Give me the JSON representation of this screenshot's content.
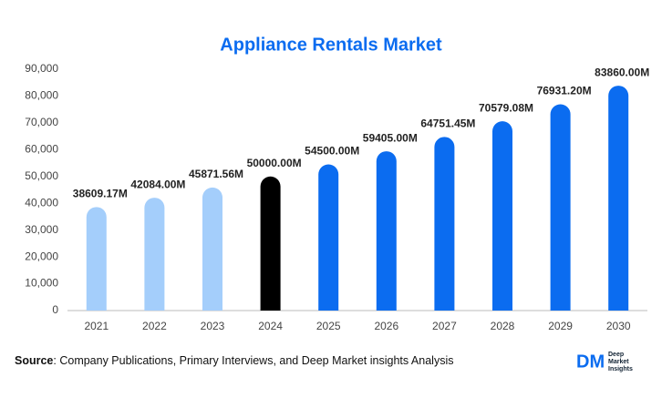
{
  "chart_data": {
    "type": "bar",
    "title": "Appliance Rentals Market",
    "categories": [
      "2021",
      "2022",
      "2023",
      "2024",
      "2025",
      "2026",
      "2027",
      "2028",
      "2029",
      "2030"
    ],
    "values": [
      38609.17,
      42084.0,
      45871.56,
      50000.0,
      54500.0,
      59405.0,
      64751.45,
      70579.08,
      76931.2,
      83860.0
    ],
    "value_labels": [
      "38609.17M",
      "42084.00M",
      "45871.56M",
      "50000.00M",
      "54500.00M",
      "59405.00M",
      "64751.45M",
      "70579.08M",
      "76931.20M",
      "83860.00M"
    ],
    "colors": [
      "#a4cefb",
      "#a4cefb",
      "#a4cefb",
      "#000000",
      "#0b6cf0",
      "#0b6cf0",
      "#0b6cf0",
      "#0b6cf0",
      "#0b6cf0",
      "#0b6cf0"
    ],
    "ylim": [
      0,
      90000
    ],
    "yticks": [
      0,
      {
        "value": 10000,
        "label": "10,000"
      },
      {
        "value": 20000,
        "label": "20,000"
      },
      {
        "value": 30000,
        "label": "30,000"
      },
      {
        "value": 40000,
        "label": "40,000"
      },
      {
        "value": 50000,
        "label": "50,000"
      },
      {
        "value": 60000,
        "label": "60,000"
      },
      {
        "value": 70000,
        "label": "70,000"
      },
      {
        "value": 80000,
        "label": "80,000"
      },
      {
        "value": 90000,
        "label": "90,000"
      }
    ],
    "grid": false
  },
  "footer": {
    "source_label": "Source",
    "source_text": ": Company Publications, Primary Interviews, and Deep Market insights Analysis"
  },
  "logo": {
    "mark": "DM",
    "lines": [
      "Deep",
      "Market",
      "Insights"
    ]
  }
}
